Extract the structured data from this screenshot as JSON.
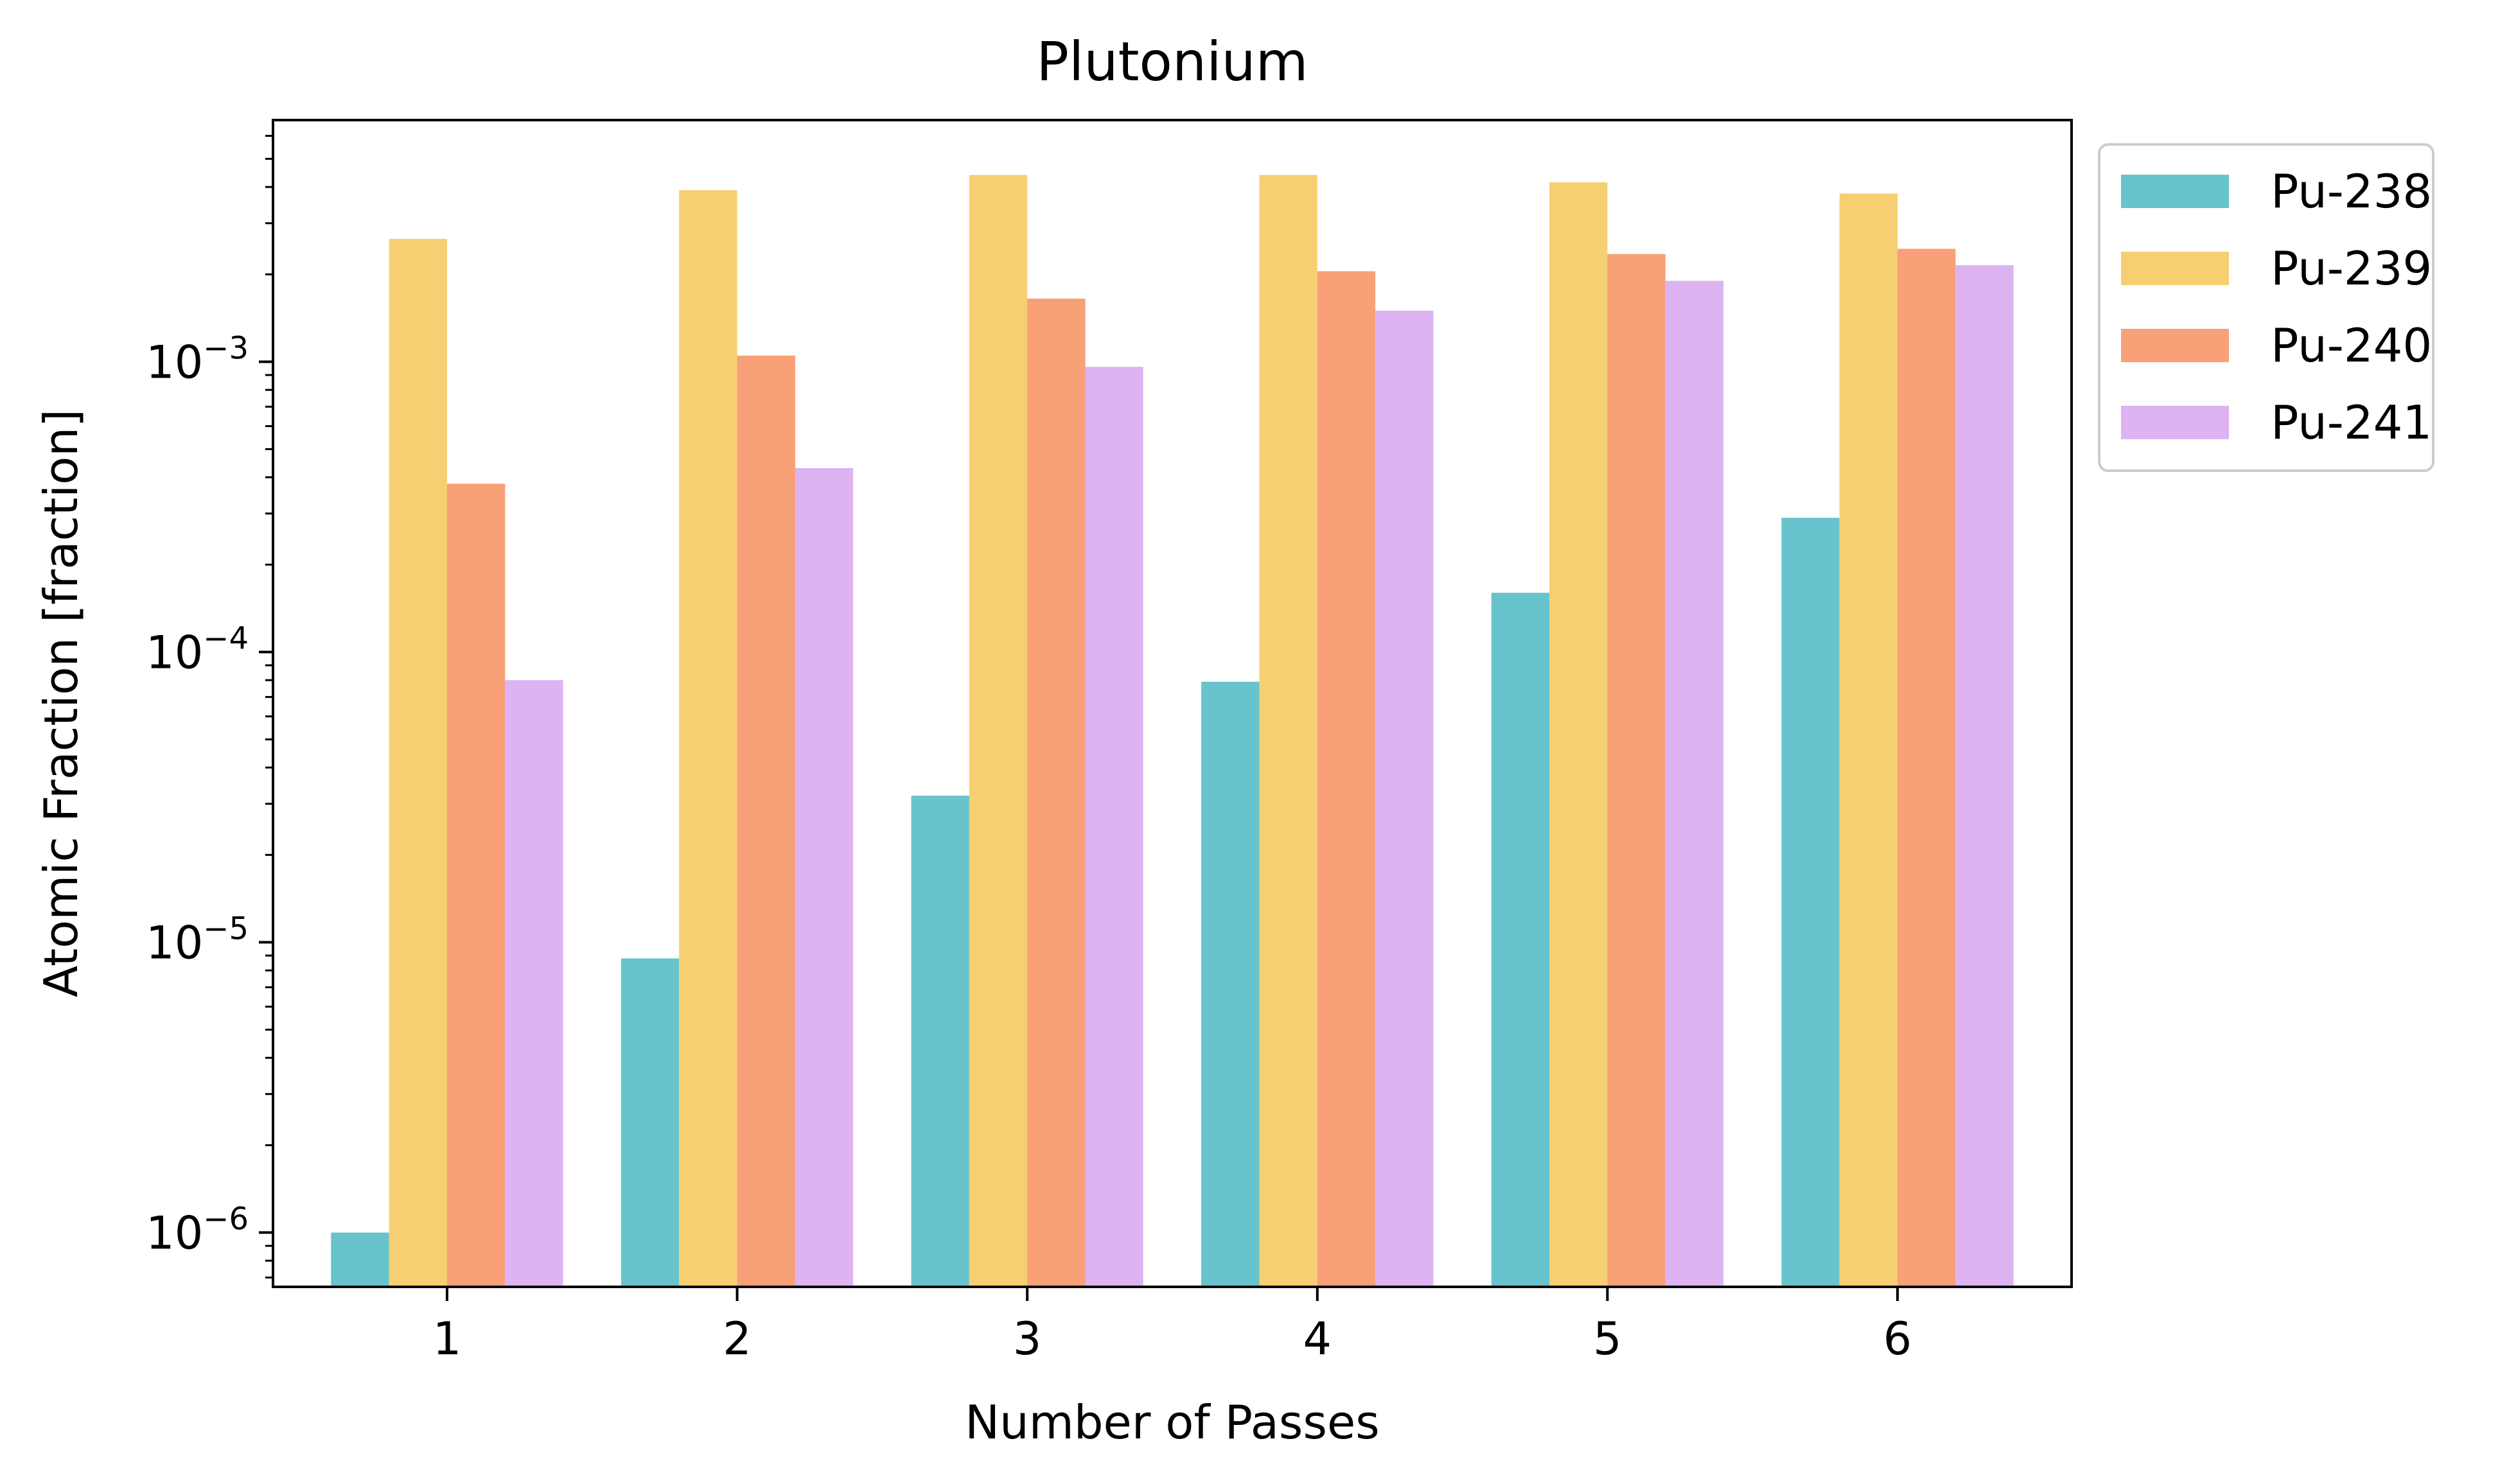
{
  "chart_data": {
    "type": "bar",
    "title": "Plutonium",
    "xlabel": "Number of Passes",
    "ylabel": "Atomic Fraction [fraction]",
    "yscale": "log",
    "ylim": [
      6.5e-07,
      0.0068
    ],
    "categories": [
      "1",
      "2",
      "3",
      "4",
      "5",
      "6"
    ],
    "yticks": [
      {
        "value": 1e-06,
        "base": "10",
        "exp": "−6"
      },
      {
        "value": 1e-05,
        "base": "10",
        "exp": "−5"
      },
      {
        "value": 0.0001,
        "base": "10",
        "exp": "−4"
      },
      {
        "value": 0.001,
        "base": "10",
        "exp": "−3"
      }
    ],
    "series": [
      {
        "name": "Pu-238",
        "color": "#68c4cc",
        "values": [
          1e-06,
          8.8e-06,
          3.2e-05,
          7.9e-05,
          0.00016,
          0.00029
        ]
      },
      {
        "name": "Pu-239",
        "color": "#f5cf72",
        "values": [
          0.00265,
          0.0039,
          0.0044,
          0.0044,
          0.00415,
          0.0038
        ]
      },
      {
        "name": "Pu-240",
        "color": "#f8a077",
        "values": [
          0.00038,
          0.00105,
          0.00165,
          0.00205,
          0.00235,
          0.00245
        ]
      },
      {
        "name": "Pu-241",
        "color": "#ddb3f2",
        "values": [
          8e-05,
          0.00043,
          0.00096,
          0.0015,
          0.0019,
          0.00215
        ]
      }
    ],
    "legend": "outside-upper-right",
    "grid": false
  }
}
